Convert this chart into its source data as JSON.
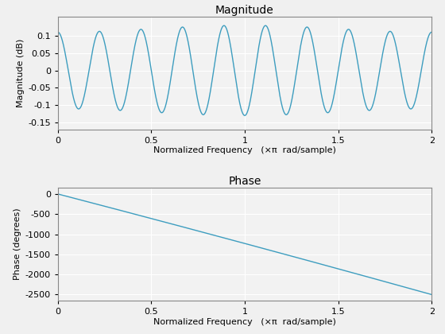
{
  "mag_title": "Magnitude",
  "phase_title": "Phase",
  "xlabel": "Normalized Frequency   (×π  rad/sample)",
  "mag_ylabel": "Magnitude (dB)",
  "phase_ylabel": "Phase (degrees)",
  "xlim": [
    0,
    2
  ],
  "mag_ylim": [
    -0.17,
    0.155
  ],
  "phase_ylim": [
    -2650,
    150
  ],
  "mag_yticks": [
    -0.15,
    -0.1,
    -0.05,
    0,
    0.05,
    0.1
  ],
  "phase_yticks": [
    0,
    -500,
    -1000,
    -1500,
    -2000,
    -2500
  ],
  "xticks": [
    0,
    0.5,
    1,
    1.5,
    2
  ],
  "line_color": "#3d9dbf",
  "axes_bg_color": "#f2f2f2",
  "fig_bg_color": "#f0f0f0",
  "grid_color": "#ffffff",
  "n_points": 2048,
  "mag_amplitude": 0.13,
  "mag_cycles": 9.0,
  "phase_a": 1210.0,
  "phase_b": 20.0,
  "line_width": 1.0
}
